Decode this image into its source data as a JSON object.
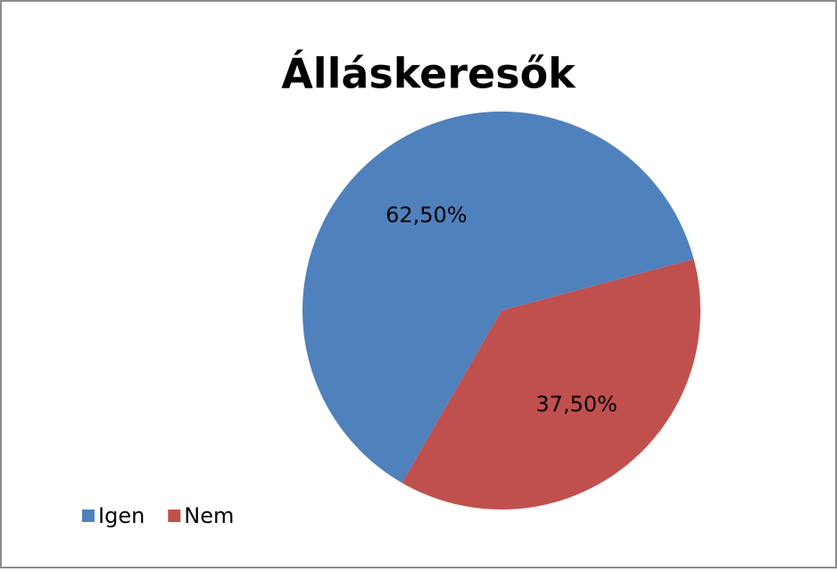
{
  "chart_data": {
    "type": "pie",
    "title": "Álláskeresők",
    "categories": [
      "Igen",
      "Nem"
    ],
    "values": [
      62.5,
      37.5
    ],
    "value_labels": [
      "62,50%",
      "37,50%"
    ],
    "colors": [
      "#4f81bd",
      "#c0504d"
    ],
    "legend": "bottom-left"
  }
}
